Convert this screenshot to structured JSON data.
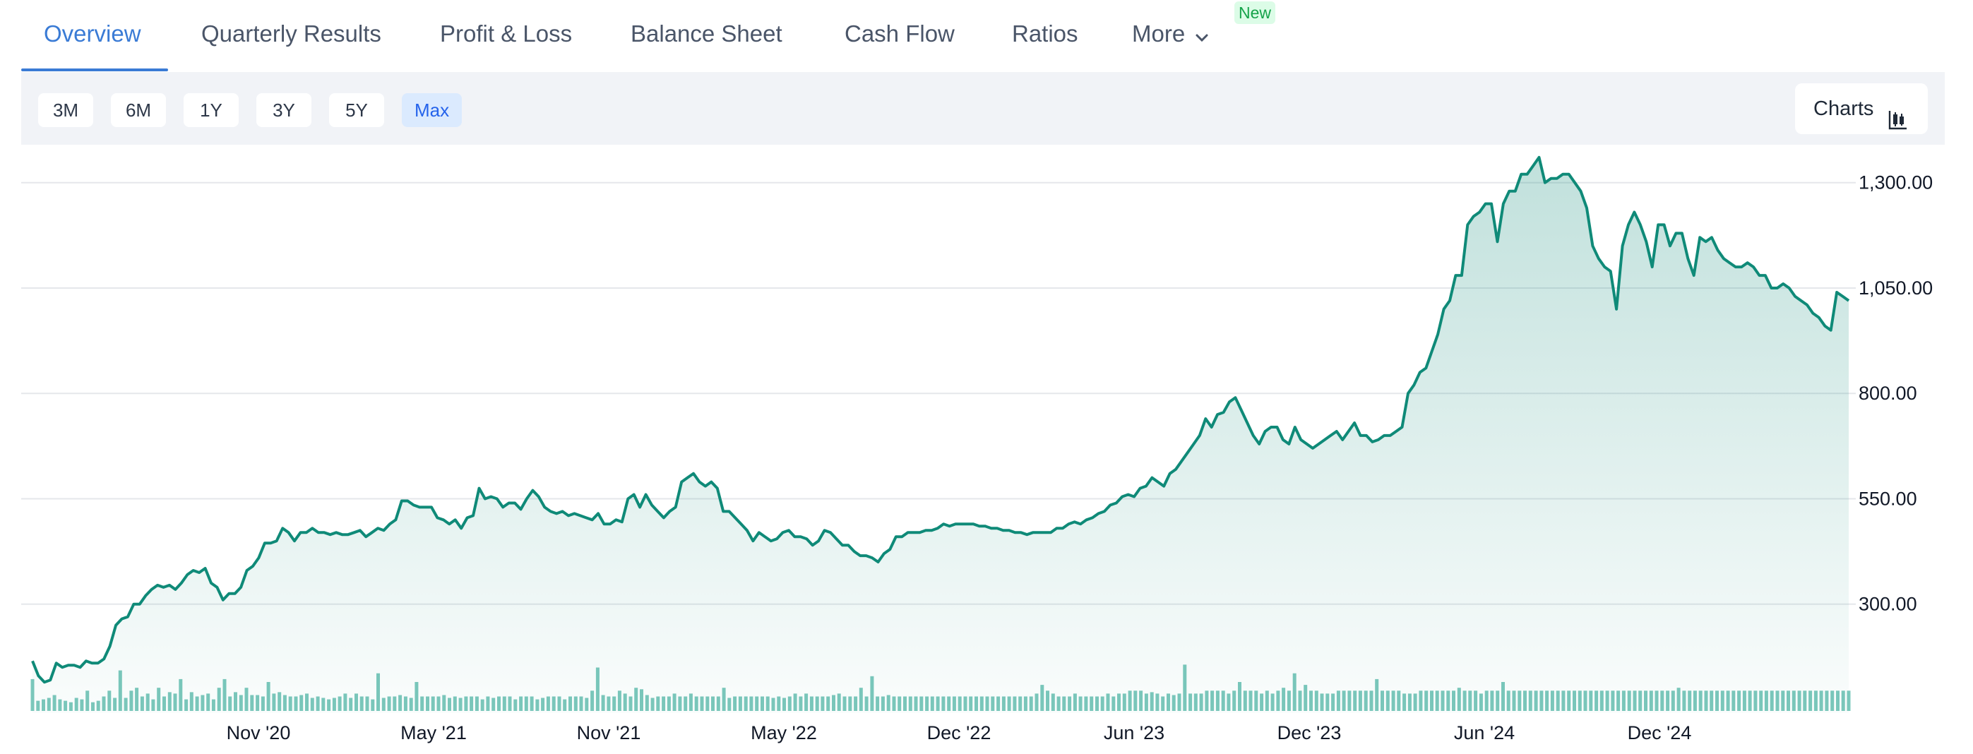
{
  "tabs": {
    "items": [
      "Overview",
      "Quarterly Results",
      "Profit & Loss",
      "Balance Sheet",
      "Cash Flow",
      "Ratios",
      "More"
    ],
    "active": "Overview",
    "new_badge": "New"
  },
  "toolbar": {
    "ranges": [
      "3M",
      "6M",
      "1Y",
      "3Y",
      "5Y",
      "Max"
    ],
    "active_range": "Max",
    "charts_label": "Charts"
  },
  "colors": {
    "accent": "#3a7bd5",
    "line": "#0f8a78",
    "volume": "#7cc8bc",
    "active_range_bg": "#dbeafe"
  },
  "chart_data": {
    "type": "line",
    "y_ticks": [
      "1,300.00",
      "1,050.00",
      "800.00",
      "550.00",
      "300.00"
    ],
    "x_ticks": [
      "Nov '20",
      "May '21",
      "Nov '21",
      "May '22",
      "Dec '22",
      "Jun '23",
      "Dec '23",
      "Jun '24",
      "Dec '24"
    ],
    "ylim": [
      50,
      1390
    ],
    "grid": true,
    "series": [
      {
        "values": [
          165,
          130,
          115,
          120,
          160,
          150,
          155,
          155,
          150,
          165,
          160,
          160,
          170,
          200,
          250,
          265,
          270,
          300,
          300,
          320,
          335,
          345,
          340,
          345,
          335,
          350,
          370,
          380,
          375,
          385,
          350,
          340,
          310,
          325,
          325,
          340,
          380,
          390,
          410,
          445,
          445,
          450,
          480,
          470,
          450,
          470,
          470,
          480,
          470,
          470,
          465,
          470,
          465,
          465,
          470,
          475,
          460,
          470,
          480,
          475,
          490,
          500,
          545,
          545,
          535,
          530,
          530,
          530,
          505,
          500,
          490,
          500,
          480,
          505,
          510,
          575,
          550,
          555,
          550,
          530,
          540,
          540,
          525,
          550,
          570,
          555,
          530,
          520,
          515,
          520,
          510,
          515,
          510,
          505,
          500,
          515,
          490,
          490,
          500,
          495,
          550,
          560,
          530,
          560,
          535,
          520,
          505,
          520,
          530,
          590,
          600,
          610,
          590,
          580,
          590,
          575,
          520,
          520,
          505,
          490,
          475,
          450,
          470,
          460,
          450,
          455,
          470,
          475,
          460,
          460,
          455,
          440,
          450,
          475,
          470,
          455,
          440,
          440,
          425,
          415,
          415,
          410,
          400,
          420,
          430,
          460,
          460,
          470,
          470,
          470,
          475,
          475,
          480,
          490,
          485,
          490,
          490,
          490,
          490,
          485,
          485,
          480,
          480,
          475,
          475,
          470,
          470,
          465,
          470,
          470,
          470,
          470,
          480,
          480,
          490,
          495,
          490,
          500,
          505,
          515,
          520,
          535,
          540,
          555,
          560,
          555,
          575,
          580,
          600,
          590,
          580,
          610,
          620,
          640,
          660,
          680,
          700,
          740,
          720,
          750,
          755,
          780,
          790,
          760,
          730,
          700,
          680,
          710,
          720,
          720,
          690,
          680,
          720,
          690,
          680,
          670,
          680,
          690,
          700,
          710,
          690,
          710,
          730,
          700,
          700,
          685,
          690,
          700,
          700,
          710,
          720,
          800,
          820,
          850,
          860,
          900,
          940,
          1000,
          1020,
          1080,
          1080,
          1200,
          1220,
          1230,
          1250,
          1250,
          1160,
          1250,
          1280,
          1280,
          1320,
          1320,
          1340,
          1360,
          1300,
          1310,
          1310,
          1320,
          1320,
          1300,
          1280,
          1240,
          1150,
          1120,
          1100,
          1090,
          1000,
          1150,
          1200,
          1230,
          1200,
          1160,
          1100,
          1200,
          1200,
          1150,
          1180,
          1180,
          1120,
          1080,
          1170,
          1160,
          1170,
          1140,
          1120,
          1110,
          1100,
          1100,
          1110,
          1100,
          1080,
          1080,
          1050,
          1050,
          1060,
          1050,
          1030,
          1020,
          1010,
          990,
          980,
          960,
          950,
          1040,
          1030,
          1020
        ]
      }
    ],
    "volume": {
      "values": [
        22,
        7,
        8,
        9,
        11,
        8,
        7,
        6,
        9,
        8,
        14,
        6,
        7,
        10,
        14,
        9,
        28,
        9,
        14,
        16,
        10,
        12,
        8,
        16,
        10,
        13,
        12,
        22,
        8,
        13,
        10,
        11,
        12,
        8,
        16,
        22,
        10,
        13,
        11,
        16,
        11,
        11,
        10,
        20,
        12,
        13,
        11,
        10,
        10,
        11,
        12,
        9,
        10,
        9,
        8,
        9,
        10,
        12,
        9,
        12,
        10,
        10,
        8,
        26,
        9,
        10,
        10,
        11,
        10,
        9,
        20,
        10,
        10,
        10,
        10,
        11,
        9,
        10,
        9,
        10,
        10,
        10,
        8,
        10,
        9,
        10,
        10,
        10,
        8,
        10,
        10,
        10,
        8,
        9,
        10,
        10,
        10,
        8,
        10,
        10,
        10,
        9,
        14,
        30,
        11,
        10,
        10,
        14,
        12,
        10,
        16,
        15,
        11,
        9,
        10,
        10,
        10,
        12,
        10,
        10,
        12,
        10,
        10,
        10,
        10,
        10,
        16,
        9,
        10,
        10,
        10,
        10,
        10,
        10,
        10,
        9,
        10,
        9,
        10,
        12,
        10,
        12,
        10,
        10,
        10,
        10,
        11,
        12,
        10,
        10,
        10,
        16,
        10,
        24,
        10,
        10,
        11,
        10,
        10,
        10,
        10,
        10,
        10,
        10,
        10,
        10,
        10,
        10,
        10,
        10,
        10,
        10,
        10,
        10,
        10,
        10,
        10,
        10,
        10,
        10,
        10,
        10,
        10,
        12,
        18,
        14,
        12,
        10,
        10,
        10,
        12,
        10,
        10,
        10,
        10,
        10,
        12,
        10,
        12,
        12,
        14,
        14,
        14,
        12,
        13,
        12,
        10,
        12,
        11,
        12,
        32,
        12,
        12,
        12,
        14,
        14,
        14,
        14,
        12,
        14,
        20,
        14,
        14,
        14,
        12,
        14,
        12,
        14,
        16,
        14,
        26,
        14,
        18,
        14,
        14,
        12,
        12,
        12,
        14,
        14,
        14,
        14,
        14,
        14,
        14,
        22,
        14,
        14,
        14,
        14,
        12,
        12,
        12,
        14,
        14,
        14,
        14,
        14,
        14,
        14,
        16,
        14,
        14,
        14,
        12,
        14,
        14,
        14,
        20,
        14,
        14,
        14,
        14,
        14,
        14,
        14,
        14,
        14,
        14,
        14,
        14,
        14,
        14,
        14,
        14,
        14,
        14,
        14,
        14,
        14,
        14,
        14,
        14,
        14,
        14,
        14,
        14,
        14,
        14,
        14,
        16,
        14,
        14,
        14,
        14,
        14,
        14,
        14,
        14,
        14,
        14,
        14,
        14,
        14,
        14,
        14,
        14,
        14,
        14,
        14,
        14,
        14,
        14,
        14,
        14,
        14,
        14,
        14,
        14,
        14,
        14,
        14
      ]
    }
  }
}
